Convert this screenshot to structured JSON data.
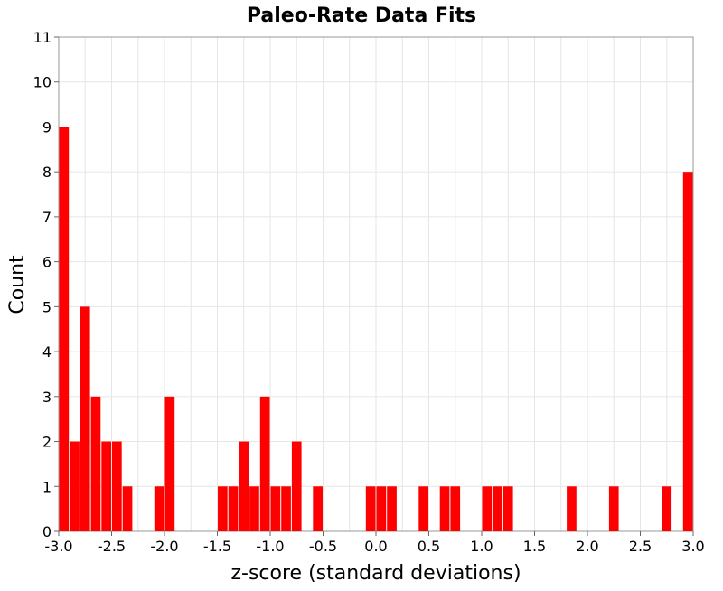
{
  "chart_data": {
    "type": "bar",
    "title": "Paleo-Rate Data Fits",
    "xlabel": "z-score (standard deviations)",
    "ylabel": "Count",
    "xlim": [
      -3.0,
      3.0
    ],
    "ylim": [
      0,
      11
    ],
    "bin_width": 0.1,
    "grid": true,
    "legend": "none",
    "bar_color": "#ff0000",
    "x_ticks": [
      "-3.0",
      "-2.5",
      "-2.0",
      "-1.5",
      "-1.0",
      "-0.5",
      "0.0",
      "0.5",
      "1.0",
      "1.5",
      "2.0",
      "2.5",
      "3.0"
    ],
    "y_ticks": [
      "0",
      "1",
      "2",
      "3",
      "4",
      "5",
      "6",
      "7",
      "8",
      "9",
      "10",
      "11"
    ],
    "bins": [
      {
        "x": -3.0,
        "count": 9
      },
      {
        "x": -2.9,
        "count": 2
      },
      {
        "x": -2.8,
        "count": 5
      },
      {
        "x": -2.7,
        "count": 3
      },
      {
        "x": -2.6,
        "count": 2
      },
      {
        "x": -2.5,
        "count": 2
      },
      {
        "x": -2.4,
        "count": 1
      },
      {
        "x": -2.1,
        "count": 1
      },
      {
        "x": -2.0,
        "count": 3
      },
      {
        "x": -1.5,
        "count": 1
      },
      {
        "x": -1.4,
        "count": 1
      },
      {
        "x": -1.3,
        "count": 2
      },
      {
        "x": -1.2,
        "count": 1
      },
      {
        "x": -1.1,
        "count": 3
      },
      {
        "x": -1.0,
        "count": 1
      },
      {
        "x": -0.9,
        "count": 1
      },
      {
        "x": -0.8,
        "count": 2
      },
      {
        "x": -0.6,
        "count": 1
      },
      {
        "x": -0.1,
        "count": 1
      },
      {
        "x": 0.0,
        "count": 1
      },
      {
        "x": 0.1,
        "count": 1
      },
      {
        "x": 0.4,
        "count": 1
      },
      {
        "x": 0.6,
        "count": 1
      },
      {
        "x": 0.7,
        "count": 1
      },
      {
        "x": 1.0,
        "count": 1
      },
      {
        "x": 1.1,
        "count": 1
      },
      {
        "x": 1.2,
        "count": 1
      },
      {
        "x": 1.8,
        "count": 1
      },
      {
        "x": 2.2,
        "count": 1
      },
      {
        "x": 2.7,
        "count": 1
      },
      {
        "x": 2.9,
        "count": 8
      }
    ]
  }
}
